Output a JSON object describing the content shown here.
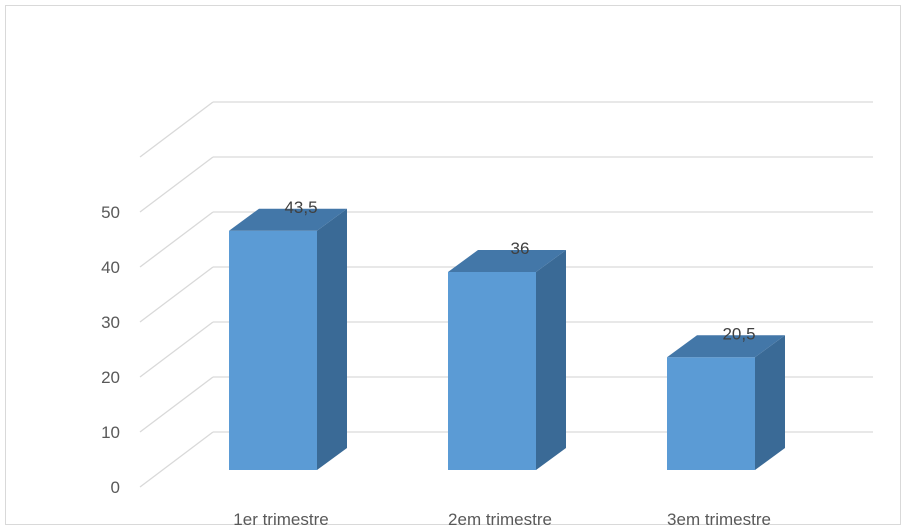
{
  "chart_data": {
    "type": "bar",
    "style": "3d-column",
    "categories": [
      "1er trimestre",
      "2em trimestre",
      "3em trimestre"
    ],
    "values": [
      43.5,
      36,
      20.5
    ],
    "data_labels": [
      "43,5",
      "36",
      "20,5"
    ],
    "y_ticks": [
      "0",
      "10",
      "20",
      "30",
      "40",
      "50"
    ],
    "ylim": [
      0,
      50
    ],
    "grid": true,
    "legend": "none",
    "title": "",
    "xlabel": "",
    "ylabel": "",
    "colors": {
      "front": "#5b9bd5",
      "side": "#3a6a96",
      "top": "#4377a8",
      "grid": "#d9d9d9",
      "text": "#595959"
    }
  }
}
